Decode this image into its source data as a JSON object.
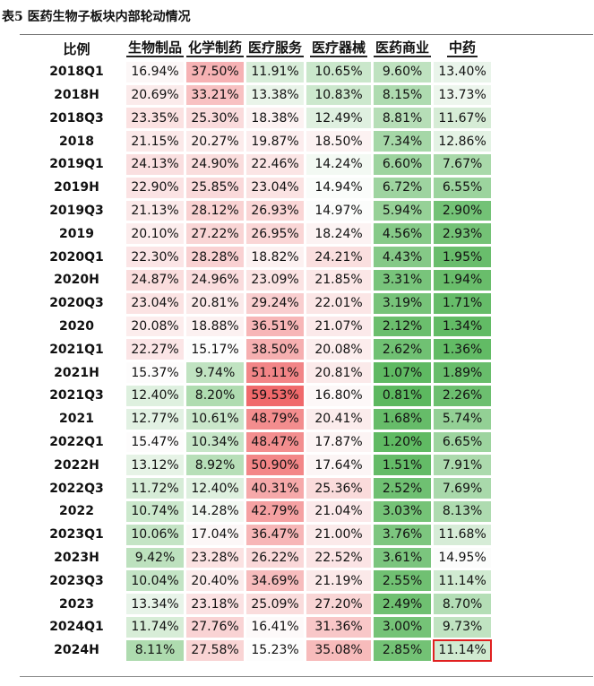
{
  "caption": "表5 医药生物子板块内部轮动情况",
  "table": {
    "corner": "比例",
    "columns": [
      "生物制品",
      "化学制药",
      "医疗服务",
      "医疗器械",
      "医药商业",
      "中药"
    ],
    "rows": [
      {
        "label": "2018Q1",
        "values": [
          "16.94%",
          "37.50%",
          "11.91%",
          "10.65%",
          "9.60%",
          "13.40%"
        ]
      },
      {
        "label": "2018H",
        "values": [
          "20.69%",
          "33.21%",
          "13.38%",
          "10.83%",
          "8.15%",
          "13.73%"
        ]
      },
      {
        "label": "2018Q3",
        "values": [
          "23.35%",
          "25.30%",
          "18.38%",
          "12.49%",
          "8.81%",
          "11.67%"
        ]
      },
      {
        "label": "2018",
        "values": [
          "21.15%",
          "20.27%",
          "19.87%",
          "18.50%",
          "7.34%",
          "12.86%"
        ]
      },
      {
        "label": "2019Q1",
        "values": [
          "24.13%",
          "24.90%",
          "22.46%",
          "14.24%",
          "6.60%",
          "7.67%"
        ]
      },
      {
        "label": "2019H",
        "values": [
          "22.90%",
          "25.85%",
          "23.04%",
          "14.94%",
          "6.72%",
          "6.55%"
        ]
      },
      {
        "label": "2019Q3",
        "values": [
          "21.13%",
          "28.12%",
          "26.93%",
          "14.97%",
          "5.94%",
          "2.90%"
        ]
      },
      {
        "label": "2019",
        "values": [
          "20.10%",
          "27.22%",
          "26.95%",
          "18.24%",
          "4.56%",
          "2.93%"
        ]
      },
      {
        "label": "2020Q1",
        "values": [
          "22.30%",
          "28.28%",
          "18.82%",
          "24.21%",
          "4.43%",
          "1.95%"
        ]
      },
      {
        "label": "2020H",
        "values": [
          "24.87%",
          "24.96%",
          "23.09%",
          "21.85%",
          "3.31%",
          "1.94%"
        ]
      },
      {
        "label": "2020Q3",
        "values": [
          "23.04%",
          "20.81%",
          "29.24%",
          "22.01%",
          "3.19%",
          "1.71%"
        ]
      },
      {
        "label": "2020",
        "values": [
          "20.08%",
          "18.88%",
          "36.51%",
          "21.07%",
          "2.12%",
          "1.34%"
        ]
      },
      {
        "label": "2021Q1",
        "values": [
          "22.27%",
          "15.17%",
          "38.50%",
          "20.08%",
          "2.62%",
          "1.36%"
        ]
      },
      {
        "label": "2021H",
        "values": [
          "15.37%",
          "9.74%",
          "51.11%",
          "20.81%",
          "1.07%",
          "1.89%"
        ]
      },
      {
        "label": "2021Q3",
        "values": [
          "12.40%",
          "8.20%",
          "59.53%",
          "16.80%",
          "0.81%",
          "2.26%"
        ]
      },
      {
        "label": "2021",
        "values": [
          "12.77%",
          "10.61%",
          "48.79%",
          "20.41%",
          "1.68%",
          "5.74%"
        ]
      },
      {
        "label": "2022Q1",
        "values": [
          "15.47%",
          "10.34%",
          "48.47%",
          "17.87%",
          "1.20%",
          "6.65%"
        ]
      },
      {
        "label": "2022H",
        "values": [
          "13.12%",
          "8.92%",
          "50.90%",
          "17.64%",
          "1.51%",
          "7.91%"
        ]
      },
      {
        "label": "2022Q3",
        "values": [
          "11.72%",
          "12.40%",
          "40.31%",
          "25.36%",
          "2.52%",
          "7.69%"
        ]
      },
      {
        "label": "2022",
        "values": [
          "10.74%",
          "14.28%",
          "42.79%",
          "21.04%",
          "3.03%",
          "8.13%"
        ]
      },
      {
        "label": "2023Q1",
        "values": [
          "10.06%",
          "17.04%",
          "36.47%",
          "21.00%",
          "3.76%",
          "11.68%"
        ]
      },
      {
        "label": "2023H",
        "values": [
          "9.42%",
          "23.28%",
          "26.22%",
          "22.52%",
          "3.61%",
          "14.95%"
        ]
      },
      {
        "label": "2023Q3",
        "values": [
          "10.04%",
          "20.40%",
          "34.69%",
          "21.19%",
          "2.55%",
          "11.14%"
        ]
      },
      {
        "label": "2023",
        "values": [
          "13.34%",
          "23.18%",
          "25.09%",
          "27.20%",
          "2.49%",
          "8.70%"
        ]
      },
      {
        "label": "2024Q1",
        "values": [
          "11.74%",
          "27.76%",
          "16.41%",
          "31.36%",
          "3.00%",
          "9.73%"
        ]
      },
      {
        "label": "2024H",
        "values": [
          "8.11%",
          "27.58%",
          "15.23%",
          "35.08%",
          "2.85%",
          "11.14%"
        ]
      }
    ],
    "highlight_cell": {
      "row": 25,
      "col": 5,
      "color": "#e02020"
    },
    "heat_colors": {
      "low": "#5cb85f",
      "mid": "#fdfdfd",
      "high": "#f0696b"
    }
  }
}
